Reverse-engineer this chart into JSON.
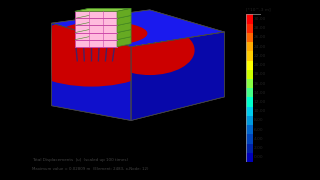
{
  "background_color": "#000000",
  "plot_bg_color": "#ddd8d0",
  "colorbar_title": "[*10^-3 m]",
  "colorbar_values": [
    "30.00",
    "28.00",
    "26.00",
    "24.00",
    "22.00",
    "20.00",
    "18.00",
    "16.00",
    "14.00",
    "12.00",
    "10.00",
    "8.00",
    "6.00",
    "4.00",
    "2.00",
    "0.00"
  ],
  "bar_colors": [
    "#ff0000",
    "#ff2800",
    "#ff6600",
    "#ffaa00",
    "#ffcc00",
    "#ffff00",
    "#ccff00",
    "#88ff44",
    "#44ff88",
    "#00ffcc",
    "#00ccee",
    "#0099dd",
    "#0066cc",
    "#0044bb",
    "#0022aa",
    "#0000bb"
  ],
  "footer_line1": "Total Displacements  |u|  (scaled up 100 times)",
  "footer_line2": "Maximum value = 0.02809 m  (Element: 2483, x-Node: 12)",
  "contour_colors_inner_to_outer": [
    "#cc0000",
    "#ee2200",
    "#ff5500",
    "#ff8800",
    "#ffbb00",
    "#ffee00",
    "#ccff00",
    "#88ee55",
    "#44ddaa",
    "#00cccc",
    "#0099cc",
    "#0077bb",
    "#0055aa",
    "#003399",
    "#001188",
    "#0000aa"
  ],
  "soil_blue": "#0000cc",
  "soil_blue_dark": "#000099",
  "soil_blue_side": "#0000aa"
}
